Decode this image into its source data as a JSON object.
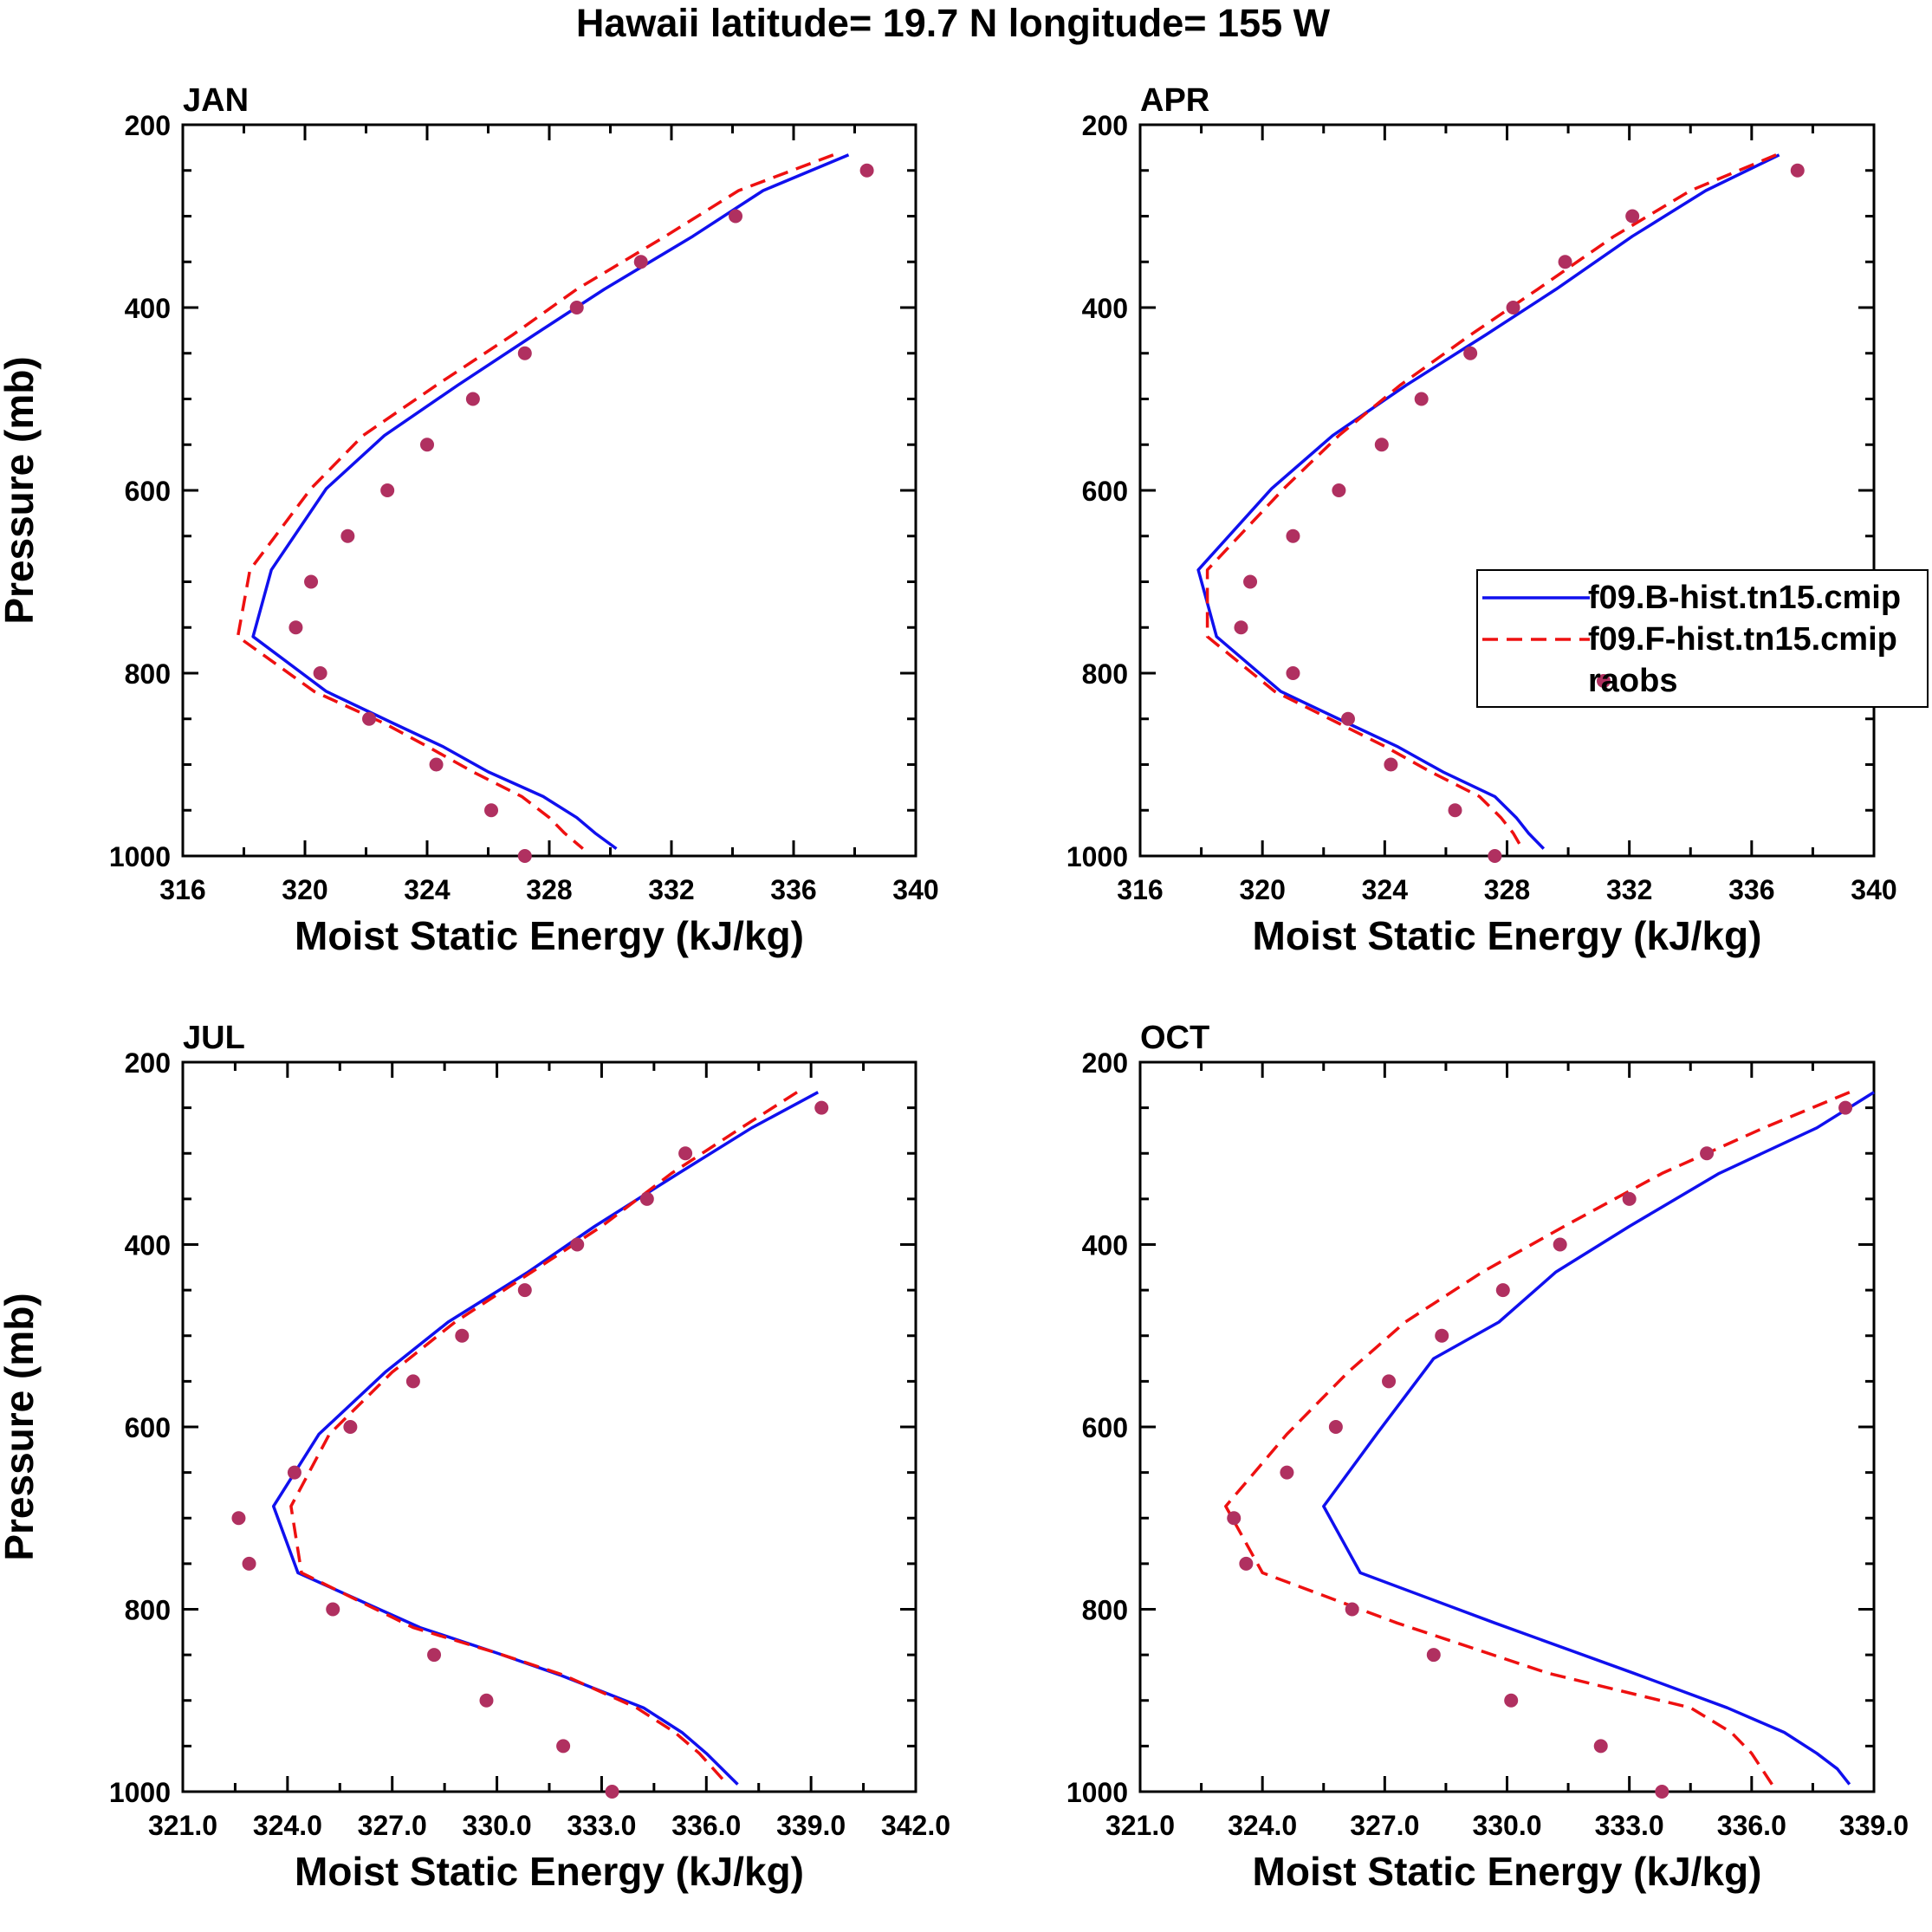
{
  "figure": {
    "title": "Hawaii  latitude= 19.7 N longitude= 155 W"
  },
  "legend": {
    "entries": [
      {
        "label": "f09.B-hist.tn15.cmip",
        "style": "solid",
        "color": "#0000ff"
      },
      {
        "label": "f09.F-hist.tn15.cmip",
        "style": "dashed",
        "color": "#ff0000"
      },
      {
        "label": "raobs",
        "style": "marker",
        "color": "#b03060"
      }
    ]
  },
  "colors": {
    "b_hist": "#1010ee",
    "f_hist": "#ee1010",
    "raobs": "#b03060"
  },
  "chart_data": [
    {
      "type": "line",
      "panel": "JAN",
      "title": "JAN",
      "xlabel": "Moist Static Energy (kJ/kg)",
      "ylabel": "Pressure (mb)",
      "xlim": [
        316,
        340
      ],
      "ylim": [
        200,
        1000
      ],
      "y_inverted": true,
      "xticks": [
        316,
        320,
        324,
        328,
        332,
        336,
        340
      ],
      "xtick_labels": [
        "316",
        "320",
        "324",
        "328",
        "332",
        "336",
        "340"
      ],
      "yticks": [
        200,
        400,
        600,
        800,
        1000
      ],
      "ytick_labels": [
        "200",
        "400",
        "600",
        "800",
        "1000"
      ],
      "series": [
        {
          "name": "f09.B-hist.tn15.cmip",
          "style": "solid",
          "x": [
            337.8,
            335.0,
            332.7,
            329.8,
            327.5,
            325.0,
            322.6,
            320.7,
            318.9,
            318.3,
            320.7,
            322.9,
            324.5,
            326.0,
            327.8,
            328.9,
            329.5,
            330.2
          ],
          "p": [
            233,
            272,
            322,
            380,
            430,
            485,
            540,
            598,
            687,
            760,
            820,
            855,
            880,
            908,
            935,
            958,
            975,
            992
          ]
        },
        {
          "name": "f09.F-hist.tn15.cmip",
          "style": "dashed",
          "x": [
            337.3,
            334.2,
            331.8,
            328.9,
            326.8,
            324.3,
            321.9,
            320.2,
            318.2,
            317.8,
            320.3,
            322.6,
            324.0,
            325.5,
            327.1,
            328.0,
            328.5,
            329.1
          ],
          "p": [
            233,
            272,
            322,
            380,
            430,
            485,
            540,
            598,
            687,
            760,
            820,
            855,
            880,
            908,
            935,
            958,
            975,
            992
          ]
        },
        {
          "name": "raobs",
          "style": "marker",
          "x": [
            338.4,
            334.1,
            331.0,
            328.9,
            327.2,
            325.5,
            324.0,
            322.7,
            321.4,
            320.2,
            319.7,
            320.5,
            322.1,
            324.3,
            326.1,
            327.2
          ],
          "p": [
            250,
            300,
            350,
            400,
            450,
            500,
            550,
            600,
            650,
            700,
            750,
            800,
            850,
            900,
            950,
            1000
          ]
        }
      ]
    },
    {
      "type": "line",
      "panel": "APR",
      "title": "APR",
      "xlabel": "Moist Static Energy (kJ/kg)",
      "ylabel": "",
      "xlim": [
        316,
        340
      ],
      "ylim": [
        200,
        1000
      ],
      "y_inverted": true,
      "xticks": [
        316,
        320,
        324,
        328,
        332,
        336,
        340
      ],
      "xtick_labels": [
        "316",
        "320",
        "324",
        "328",
        "332",
        "336",
        "340"
      ],
      "yticks": [
        200,
        400,
        600,
        800,
        1000
      ],
      "ytick_labels": [
        "200",
        "400",
        "600",
        "800",
        "1000"
      ],
      "series": [
        {
          "name": "f09.B-hist.tn15.cmip",
          "style": "solid",
          "x": [
            336.9,
            334.5,
            332.1,
            329.6,
            327.3,
            324.7,
            322.3,
            320.3,
            317.9,
            318.5,
            320.6,
            322.8,
            324.4,
            325.9,
            327.6,
            328.3,
            328.7,
            329.2
          ],
          "p": [
            233,
            272,
            322,
            380,
            430,
            485,
            540,
            598,
            687,
            760,
            820,
            855,
            880,
            908,
            935,
            958,
            975,
            992
          ]
        },
        {
          "name": "f09.F-hist.tn15.cmip",
          "style": "dashed",
          "x": [
            336.8,
            334.0,
            331.5,
            329.0,
            326.8,
            324.5,
            322.5,
            320.7,
            318.2,
            318.2,
            320.4,
            322.5,
            324.0,
            325.5,
            327.1,
            327.8,
            328.2,
            328.5
          ],
          "p": [
            233,
            272,
            322,
            380,
            430,
            485,
            540,
            598,
            687,
            760,
            820,
            855,
            880,
            908,
            935,
            958,
            975,
            992
          ]
        },
        {
          "name": "raobs",
          "style": "marker",
          "x": [
            337.5,
            332.1,
            329.9,
            328.2,
            326.8,
            325.2,
            323.9,
            322.5,
            321.0,
            319.6,
            319.3,
            321.0,
            322.8,
            324.2,
            326.3,
            327.6
          ],
          "p": [
            250,
            300,
            350,
            400,
            450,
            500,
            550,
            600,
            650,
            700,
            750,
            800,
            850,
            900,
            950,
            1000
          ]
        }
      ]
    },
    {
      "type": "line",
      "panel": "JUL",
      "title": "JUL",
      "xlabel": "Moist Static Energy (kJ/kg)",
      "ylabel": "Pressure (mb)",
      "xlim": [
        321.0,
        342.0
      ],
      "ylim": [
        200,
        1000
      ],
      "y_inverted": true,
      "xticks": [
        321.0,
        324.0,
        327.0,
        330.0,
        333.0,
        336.0,
        339.0,
        342.0
      ],
      "xtick_labels": [
        "321.0",
        "324.0",
        "327.0",
        "330.0",
        "333.0",
        "336.0",
        "339.0",
        "342.0"
      ],
      "yticks": [
        200,
        400,
        600,
        800,
        1000
      ],
      "ytick_labels": [
        "200",
        "400",
        "600",
        "800",
        "1000"
      ],
      "series": [
        {
          "name": "f09.B-hist.tn15.cmip",
          "style": "solid",
          "x": [
            339.2,
            337.3,
            335.2,
            332.8,
            330.9,
            328.6,
            326.8,
            324.9,
            323.6,
            324.3,
            327.8,
            330.0,
            331.8,
            334.2,
            335.3,
            336.0,
            336.9
          ],
          "p": [
            233,
            272,
            322,
            380,
            430,
            485,
            540,
            608,
            687,
            760,
            820,
            848,
            872,
            908,
            935,
            958,
            992
          ]
        },
        {
          "name": "f09.F-hist.tn15.cmip",
          "style": "dashed",
          "x": [
            338.6,
            337.0,
            335.0,
            333.0,
            331.0,
            328.8,
            327.0,
            325.2,
            324.1,
            324.4,
            327.6,
            330.0,
            331.9,
            334.0,
            335.1,
            335.8,
            336.6
          ],
          "p": [
            233,
            272,
            322,
            380,
            430,
            485,
            540,
            608,
            687,
            760,
            820,
            848,
            872,
            908,
            935,
            958,
            992
          ]
        },
        {
          "name": "raobs",
          "style": "marker",
          "x": [
            339.3,
            335.4,
            334.3,
            332.3,
            330.8,
            329.0,
            327.6,
            325.8,
            324.2,
            322.6,
            322.9,
            325.3,
            328.2,
            329.7,
            331.9,
            333.3
          ],
          "p": [
            250,
            300,
            350,
            400,
            450,
            500,
            550,
            600,
            650,
            700,
            750,
            800,
            850,
            900,
            950,
            1000
          ]
        }
      ]
    },
    {
      "type": "line",
      "panel": "OCT",
      "title": "OCT",
      "xlabel": "Moist Static Energy (kJ/kg)",
      "ylabel": "",
      "xlim": [
        321.0,
        339.0
      ],
      "ylim": [
        200,
        1000
      ],
      "y_inverted": true,
      "xticks": [
        321.0,
        324.0,
        327.0,
        330.0,
        333.0,
        336.0,
        339.0
      ],
      "xtick_labels": [
        "321.0",
        "324.0",
        "327.0",
        "330.0",
        "333.0",
        "336.0",
        "339.0"
      ],
      "yticks": [
        200,
        400,
        600,
        800,
        1000
      ],
      "ytick_labels": [
        "200",
        "400",
        "600",
        "800",
        "1000"
      ],
      "series": [
        {
          "name": "f09.B-hist.tn15.cmip",
          "style": "solid",
          "x": [
            339.0,
            337.6,
            335.2,
            333.0,
            331.2,
            329.8,
            328.2,
            326.8,
            325.5,
            326.4,
            329.7,
            333.1,
            335.4,
            336.8,
            337.6,
            338.1,
            338.4
          ],
          "p": [
            233,
            272,
            322,
            380,
            430,
            485,
            525,
            608,
            687,
            760,
            815,
            870,
            908,
            935,
            958,
            975,
            992
          ]
        },
        {
          "name": "f09.F-hist.tn15.cmip",
          "style": "dashed",
          "x": [
            338.4,
            336.3,
            333.8,
            331.4,
            329.4,
            327.5,
            326.1,
            324.6,
            323.1,
            324.0,
            327.3,
            331.0,
            334.5,
            335.5,
            336.0,
            336.5
          ],
          "p": [
            233,
            272,
            322,
            380,
            430,
            485,
            540,
            608,
            687,
            760,
            815,
            870,
            908,
            935,
            958,
            992
          ]
        },
        {
          "name": "raobs",
          "style": "marker",
          "x": [
            338.3,
            334.9,
            333.0,
            331.3,
            329.9,
            328.4,
            327.1,
            325.8,
            324.6,
            323.3,
            323.6,
            326.2,
            328.2,
            330.1,
            332.3,
            333.8
          ],
          "p": [
            250,
            300,
            350,
            400,
            450,
            500,
            550,
            600,
            650,
            700,
            750,
            800,
            850,
            900,
            950,
            1000
          ]
        }
      ]
    }
  ]
}
